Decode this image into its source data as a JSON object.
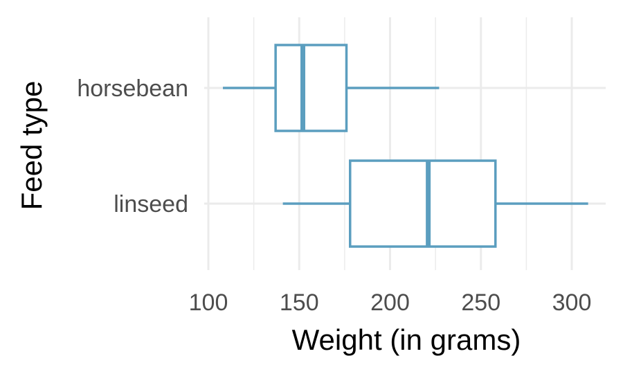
{
  "chart_data": {
    "type": "boxplot",
    "orientation": "horizontal",
    "xlabel": "Weight (in grams)",
    "ylabel": "Feed type",
    "xlim": [
      100,
      320
    ],
    "xticks": [
      100,
      150,
      200,
      250,
      300
    ],
    "grid": true,
    "categories": [
      "horsebean",
      "linseed"
    ],
    "series": [
      {
        "category": "horsebean",
        "whisker_low": 108,
        "q1": 137,
        "median": 152,
        "q3": 176,
        "whisker_high": 227
      },
      {
        "category": "linseed",
        "whisker_low": 141,
        "q1": 178,
        "median": 221,
        "q3": 258,
        "whisker_high": 309
      }
    ],
    "box_color": "#5b9ebf",
    "box_fill": "#ffffff"
  }
}
